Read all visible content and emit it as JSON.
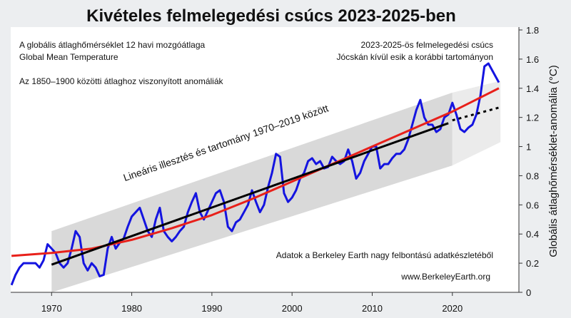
{
  "chart_data": {
    "type": "line",
    "title": "Kivételes felmelegedési csúcs 2023-2025-ben",
    "y_axis_label": "Globális átlaghőmérséklet-anomália (°C)",
    "annotations": [
      "A globális átlaghőmérséklet 12 havi mozgóátlaga",
      "Global Mean Temperature",
      "Az 1850–1900 közötti átlaghoz viszonyított anomáliák",
      "2023-2025-ös felmelegedési csúcs",
      "Jócskán kívül esik a korábbi tartományon",
      "Lineáris illesztés és tartomány 1970–2019 között",
      "Adatok a Berkeley Earth nagy felbontású adatkészletéből",
      "www.BerkeleyEarth.org"
    ],
    "xlim": [
      1964.9,
      2028.3
    ],
    "ylim": [
      0,
      1.8
    ],
    "xticks": [
      1970,
      1980,
      1990,
      2000,
      2010,
      2020
    ],
    "yticks": [
      0,
      0.2,
      0.4,
      0.6,
      0.8,
      1,
      1.2,
      1.4,
      1.6,
      1.8
    ],
    "bands": [
      {
        "color": "#d9d9d9",
        "x": [
          1970,
          2020
        ],
        "lower": [
          0,
          0.87
        ],
        "upper": [
          0.42,
          1.37
        ]
      },
      {
        "color": "#ebebeb",
        "x": [
          2020,
          2026
        ],
        "lower": [
          0.87,
          1.03
        ],
        "upper": [
          1.37,
          1.45
        ]
      }
    ],
    "series": [
      {
        "color": "#1414e0",
        "dash": false,
        "x": [
          1965,
          1965.5,
          1966,
          1966.5,
          1967,
          1967.5,
          1968,
          1968.5,
          1969,
          1969.5,
          1970,
          1970.5,
          1971,
          1971.5,
          1972,
          1972.5,
          1973,
          1973.5,
          1974,
          1974.5,
          1975,
          1975.5,
          1976,
          1976.5,
          1977,
          1977.5,
          1978,
          1978.5,
          1979,
          1979.5,
          1980,
          1980.5,
          1981,
          1981.5,
          1982,
          1982.5,
          1983,
          1983.5,
          1984,
          1984.5,
          1985,
          1985.5,
          1986,
          1986.5,
          1987,
          1987.5,
          1988,
          1988.5,
          1989,
          1989.5,
          1990,
          1990.5,
          1991,
          1991.5,
          1992,
          1992.5,
          1993,
          1993.5,
          1994,
          1994.5,
          1995,
          1995.5,
          1996,
          1996.5,
          1997,
          1997.5,
          1998,
          1998.5,
          1999,
          1999.5,
          2000,
          2000.5,
          2001,
          2001.5,
          2002,
          2002.5,
          2003,
          2003.5,
          2004,
          2004.5,
          2005,
          2005.5,
          2006,
          2006.5,
          2007,
          2007.5,
          2008,
          2008.5,
          2009,
          2009.5,
          2010,
          2010.5,
          2011,
          2011.5,
          2012,
          2012.5,
          2013,
          2013.5,
          2014,
          2014.5,
          2015,
          2015.5,
          2016,
          2016.5,
          2017,
          2017.5,
          2018,
          2018.5,
          2019,
          2019.5,
          2020,
          2020.5,
          2021,
          2021.5,
          2022,
          2022.5,
          2023,
          2023.5,
          2024,
          2024.5,
          2025,
          2025.5,
          2025.8
        ],
        "values": [
          0.05,
          0.12,
          0.17,
          0.2,
          0.2,
          0.2,
          0.2,
          0.17,
          0.22,
          0.33,
          0.3,
          0.27,
          0.2,
          0.17,
          0.2,
          0.3,
          0.42,
          0.38,
          0.2,
          0.15,
          0.2,
          0.17,
          0.11,
          0.12,
          0.3,
          0.38,
          0.3,
          0.34,
          0.37,
          0.45,
          0.52,
          0.55,
          0.58,
          0.5,
          0.42,
          0.38,
          0.5,
          0.58,
          0.42,
          0.38,
          0.35,
          0.38,
          0.42,
          0.45,
          0.55,
          0.62,
          0.68,
          0.55,
          0.5,
          0.56,
          0.62,
          0.68,
          0.7,
          0.62,
          0.45,
          0.42,
          0.48,
          0.5,
          0.55,
          0.6,
          0.7,
          0.62,
          0.55,
          0.6,
          0.72,
          0.82,
          0.95,
          0.93,
          0.68,
          0.62,
          0.65,
          0.7,
          0.78,
          0.82,
          0.9,
          0.92,
          0.88,
          0.9,
          0.85,
          0.86,
          0.93,
          0.9,
          0.88,
          0.9,
          0.98,
          0.9,
          0.78,
          0.82,
          0.9,
          0.95,
          1.0,
          1.0,
          0.85,
          0.88,
          0.88,
          0.92,
          0.95,
          0.95,
          0.98,
          1.05,
          1.15,
          1.25,
          1.32,
          1.2,
          1.15,
          1.15,
          1.1,
          1.12,
          1.2,
          1.22,
          1.3,
          1.22,
          1.12,
          1.1,
          1.13,
          1.15,
          1.22,
          1.35,
          1.55,
          1.57,
          1.52,
          1.47,
          1.44
        ]
      },
      {
        "color": "#e8201a",
        "dash": false,
        "x": [
          1965,
          1970,
          1975,
          1980,
          1985,
          1990,
          1995,
          2000,
          2005,
          2010,
          2015,
          2020,
          2025.8
        ],
        "values": [
          0.25,
          0.27,
          0.3,
          0.36,
          0.44,
          0.53,
          0.64,
          0.76,
          0.88,
          1.0,
          1.12,
          1.24,
          1.4
        ]
      },
      {
        "color": "#000000",
        "dash": false,
        "x": [
          1970,
          2019.5
        ],
        "values": [
          0.19,
          1.16
        ]
      },
      {
        "color": "#000000",
        "dash": true,
        "x": [
          2020,
          2026
        ],
        "values": [
          1.18,
          1.27
        ]
      }
    ]
  }
}
